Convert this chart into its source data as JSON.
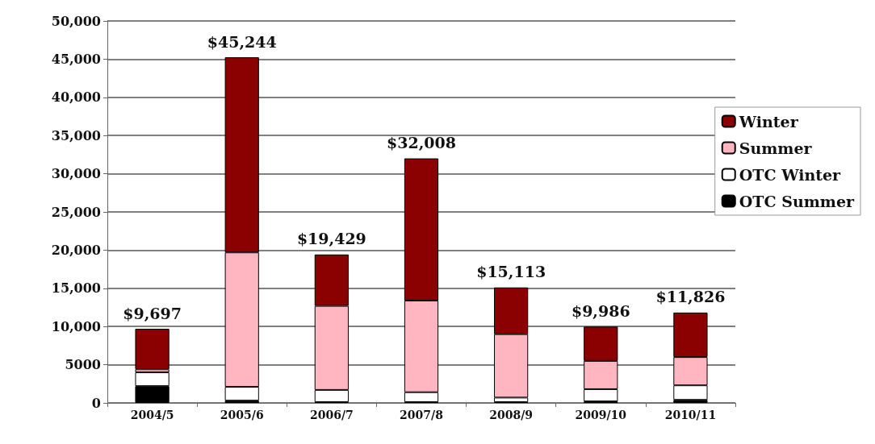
{
  "chart_data": {
    "type": "bar",
    "stacked": true,
    "categories": [
      "2004/5",
      "2005/6",
      "2006/7",
      "2007/8",
      "2008/9",
      "2009/10",
      "2010/11"
    ],
    "series": [
      {
        "name": "OTC Summer",
        "color": "#000000",
        "values": [
          2200,
          300,
          100,
          100,
          100,
          200,
          400
        ]
      },
      {
        "name": "OTC Winter",
        "color": "#ffffff",
        "values": [
          1800,
          1800,
          1600,
          1300,
          600,
          1600,
          1900
        ]
      },
      {
        "name": "Summer",
        "color": "#ffb6c1",
        "values": [
          400,
          17600,
          11000,
          12000,
          8300,
          3700,
          3700
        ]
      },
      {
        "name": "Winter",
        "color": "#8b0000",
        "values": [
          5297,
          25544,
          6729,
          18608,
          6113,
          4486,
          5826
        ]
      }
    ],
    "totals": [
      "$9,697",
      "$45,244",
      "$19,429",
      "$32,008",
      "$15,113",
      "$9,986",
      "$11,826"
    ],
    "ylim": [
      0,
      50000
    ],
    "yticks": [
      0,
      {
        "value": 5000,
        "label": "5000"
      },
      {
        "value": 10000,
        "label": "10,000"
      },
      {
        "value": 15000,
        "label": "15,000"
      },
      {
        "value": 20000,
        "label": "20,000"
      },
      {
        "value": 25000,
        "label": "25,000"
      },
      {
        "value": 30000,
        "label": "30,000"
      },
      {
        "value": 35000,
        "label": "35,000"
      },
      {
        "value": 40000,
        "label": "40,000"
      },
      {
        "value": 45000,
        "label": "45,000"
      },
      {
        "value": 50000,
        "label": "50,000"
      }
    ],
    "grid": "y",
    "legend": "right"
  }
}
